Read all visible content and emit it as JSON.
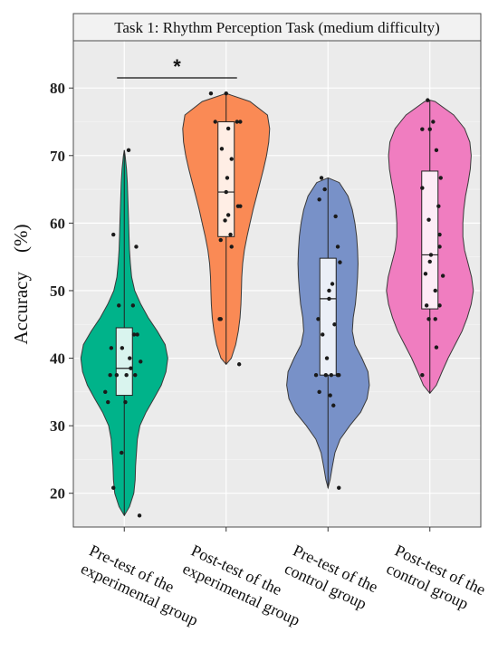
{
  "chart_data": {
    "type": "violin",
    "title": "Task 1: Rhythm Perception Task (medium difficulty)",
    "ylabel": "Accuracy　(%)",
    "xlabel": "",
    "ylim": [
      15,
      87
    ],
    "yticks": [
      20,
      30,
      40,
      50,
      60,
      70,
      80
    ],
    "grid": true,
    "categories": [
      "Pre-test of the experimental group",
      "Post-test of the experimental group",
      "Pre-test of the control group",
      "Post-test of the control group"
    ],
    "category_label_lines": [
      [
        "Pre-test of the",
        "experimental group"
      ],
      [
        "Post-test of the",
        "experimental group"
      ],
      [
        "Pre-test of the",
        "control group"
      ],
      [
        "Post-test of the",
        "control group"
      ]
    ],
    "colors": [
      "#00b38a",
      "#fa8a55",
      "#7891c8",
      "#f07dc0"
    ],
    "groups": [
      {
        "name": "Pre-test of the experimental group",
        "min": 16.7,
        "q1": 34.5,
        "median": 38.5,
        "q3": 44.5,
        "max": 70.8,
        "violin": [
          [
            16.7,
            0.0
          ],
          [
            18,
            0.12
          ],
          [
            20,
            0.22
          ],
          [
            22,
            0.25
          ],
          [
            24,
            0.26
          ],
          [
            26,
            0.28
          ],
          [
            28,
            0.3
          ],
          [
            30,
            0.36
          ],
          [
            32,
            0.5
          ],
          [
            34,
            0.68
          ],
          [
            36,
            0.85
          ],
          [
            38,
            0.96
          ],
          [
            40,
            1.0
          ],
          [
            42,
            0.94
          ],
          [
            44,
            0.76
          ],
          [
            46,
            0.55
          ],
          [
            48,
            0.38
          ],
          [
            50,
            0.24
          ],
          [
            52,
            0.17
          ],
          [
            54,
            0.14
          ],
          [
            56,
            0.12
          ],
          [
            58,
            0.11
          ],
          [
            60,
            0.1
          ],
          [
            62,
            0.09
          ],
          [
            64,
            0.08
          ],
          [
            66,
            0.07
          ],
          [
            68,
            0.05
          ],
          [
            70,
            0.02
          ],
          [
            70.8,
            0.0
          ]
        ],
        "points": [
          [
            -0.24,
            41.5
          ],
          [
            -0.35,
            35
          ],
          [
            -0.3,
            33.5
          ],
          [
            -0.2,
            20.8
          ],
          [
            0.28,
            16.7
          ],
          [
            -0.05,
            26
          ],
          [
            0.02,
            33.5
          ],
          [
            0.2,
            37.5
          ],
          [
            0.04,
            37.5
          ],
          [
            -0.14,
            37.5
          ],
          [
            0.1,
            40
          ],
          [
            0.18,
            43.5
          ],
          [
            0.16,
            47.8
          ],
          [
            -0.1,
            47.8
          ],
          [
            0.22,
            56.5
          ],
          [
            -0.2,
            58.3
          ],
          [
            0.08,
            70.8
          ],
          [
            0.24,
            43.5
          ],
          [
            -0.04,
            41.5
          ],
          [
            0.12,
            38.5
          ],
          [
            0.3,
            39.5
          ],
          [
            -0.26,
            37.5
          ]
        ]
      },
      {
        "name": "Post-test of the experimental group",
        "min": 39.1,
        "q1": 58,
        "median": 64.6,
        "q3": 75,
        "max": 79.2,
        "violin": [
          [
            39.1,
            0.0
          ],
          [
            40,
            0.12
          ],
          [
            42,
            0.22
          ],
          [
            44,
            0.28
          ],
          [
            46,
            0.32
          ],
          [
            48,
            0.34
          ],
          [
            50,
            0.35
          ],
          [
            52,
            0.36
          ],
          [
            54,
            0.38
          ],
          [
            56,
            0.42
          ],
          [
            58,
            0.48
          ],
          [
            60,
            0.55
          ],
          [
            62,
            0.62
          ],
          [
            64,
            0.7
          ],
          [
            66,
            0.78
          ],
          [
            68,
            0.86
          ],
          [
            70,
            0.93
          ],
          [
            72,
            0.98
          ],
          [
            74,
            1.0
          ],
          [
            76,
            0.95
          ],
          [
            78,
            0.55
          ],
          [
            79.2,
            0.0
          ]
        ],
        "points": [
          [
            -0.28,
            79.2
          ],
          [
            -0.2,
            75
          ],
          [
            0.0,
            79.2
          ],
          [
            0.04,
            74
          ],
          [
            0.2,
            75
          ],
          [
            0.26,
            75
          ],
          [
            -0.08,
            71
          ],
          [
            0.1,
            69.5
          ],
          [
            0.02,
            66.7
          ],
          [
            0.22,
            62.5
          ],
          [
            0.26,
            62.5
          ],
          [
            -0.02,
            60.4
          ],
          [
            0.08,
            58.3
          ],
          [
            0.1,
            56.5
          ],
          [
            -0.1,
            57.5
          ],
          [
            -0.1,
            45.8
          ],
          [
            -0.12,
            45.8
          ],
          [
            0.24,
            39.1
          ],
          [
            0.0,
            64.6
          ],
          [
            0.04,
            61.2
          ]
        ]
      },
      {
        "name": "Pre-test of the control group",
        "min": 20.8,
        "q1": 37.5,
        "median": 48.8,
        "q3": 54.8,
        "max": 66.7,
        "violin": [
          [
            20.8,
            0.0
          ],
          [
            22,
            0.05
          ],
          [
            24,
            0.1
          ],
          [
            26,
            0.16
          ],
          [
            28,
            0.28
          ],
          [
            30,
            0.5
          ],
          [
            32,
            0.75
          ],
          [
            34,
            0.9
          ],
          [
            36,
            0.95
          ],
          [
            38,
            0.92
          ],
          [
            40,
            0.78
          ],
          [
            42,
            0.62
          ],
          [
            44,
            0.56
          ],
          [
            46,
            0.58
          ],
          [
            48,
            0.63
          ],
          [
            50,
            0.66
          ],
          [
            52,
            0.68
          ],
          [
            54,
            0.69
          ],
          [
            56,
            0.68
          ],
          [
            58,
            0.66
          ],
          [
            60,
            0.62
          ],
          [
            62,
            0.56
          ],
          [
            64,
            0.46
          ],
          [
            66,
            0.26
          ],
          [
            66.7,
            0.0
          ]
        ],
        "points": [
          [
            -0.12,
            66.7
          ],
          [
            -0.06,
            65
          ],
          [
            -0.16,
            63.5
          ],
          [
            0.14,
            61
          ],
          [
            0.18,
            56.5
          ],
          [
            0.22,
            54.2
          ],
          [
            0.08,
            51
          ],
          [
            -0.18,
            45.8
          ],
          [
            0.02,
            50
          ],
          [
            0.2,
            37.5
          ],
          [
            0.18,
            37.5
          ],
          [
            -0.22,
            37.5
          ],
          [
            -0.04,
            37.5
          ],
          [
            0.06,
            37.5
          ],
          [
            -0.16,
            35
          ],
          [
            0.04,
            34.5
          ],
          [
            0.1,
            33
          ],
          [
            0.2,
            20.8
          ],
          [
            -0.1,
            43.5
          ],
          [
            0.12,
            45
          ],
          [
            0.02,
            48.8
          ],
          [
            -0.02,
            40
          ]
        ]
      },
      {
        "name": "Post-test of the control group",
        "min": 34.8,
        "q1": 47.3,
        "median": 55.3,
        "q3": 67.7,
        "max": 78.2,
        "violin": [
          [
            34.8,
            0.0
          ],
          [
            36,
            0.15
          ],
          [
            38,
            0.28
          ],
          [
            40,
            0.42
          ],
          [
            42,
            0.58
          ],
          [
            44,
            0.74
          ],
          [
            46,
            0.86
          ],
          [
            48,
            0.95
          ],
          [
            50,
            1.0
          ],
          [
            52,
            0.96
          ],
          [
            54,
            0.88
          ],
          [
            56,
            0.8
          ],
          [
            58,
            0.76
          ],
          [
            60,
            0.76
          ],
          [
            62,
            0.78
          ],
          [
            64,
            0.82
          ],
          [
            66,
            0.88
          ],
          [
            68,
            0.93
          ],
          [
            70,
            0.95
          ],
          [
            72,
            0.92
          ],
          [
            74,
            0.8
          ],
          [
            76,
            0.55
          ],
          [
            78,
            0.12
          ],
          [
            78.2,
            0.0
          ]
        ],
        "points": [
          [
            -0.04,
            78.2
          ],
          [
            0.06,
            75
          ],
          [
            -0.14,
            73.9
          ],
          [
            0.0,
            73.9
          ],
          [
            0.12,
            70.8
          ],
          [
            0.2,
            66.7
          ],
          [
            -0.14,
            65.2
          ],
          [
            0.16,
            62.5
          ],
          [
            -0.02,
            60.5
          ],
          [
            0.18,
            58.3
          ],
          [
            0.18,
            56.5
          ],
          [
            0.24,
            52.2
          ],
          [
            0.0,
            54.3
          ],
          [
            0.1,
            50
          ],
          [
            -0.06,
            47.8
          ],
          [
            0.18,
            47.8
          ],
          [
            -0.02,
            45.8
          ],
          [
            0.1,
            45.8
          ],
          [
            0.12,
            41.6
          ],
          [
            -0.14,
            37.5
          ],
          [
            0.02,
            55.3
          ],
          [
            -0.08,
            52.5
          ]
        ]
      }
    ],
    "annotations": [
      {
        "text": "*",
        "from_group": 0,
        "to_group": 1,
        "y": 81.5
      }
    ]
  }
}
